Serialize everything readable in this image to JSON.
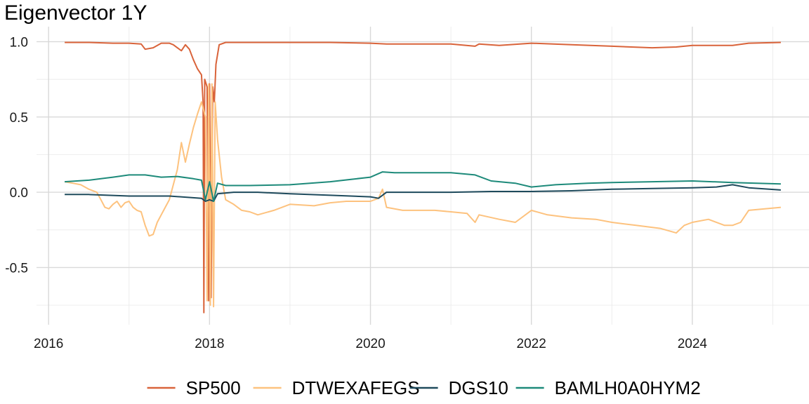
{
  "chart_data": {
    "type": "line",
    "title": "Eigenvector 1Y",
    "xlabel": "",
    "ylabel": "",
    "xlim": [
      2015.85,
      2025.45
    ],
    "ylim": [
      -0.88,
      1.1
    ],
    "x_ticks": [
      2016,
      2018,
      2020,
      2022,
      2024
    ],
    "x_tick_labels": [
      "2016",
      "2018",
      "2020",
      "2022",
      "2024"
    ],
    "y_ticks": [
      -0.5,
      0.0,
      0.5,
      1.0
    ],
    "y_tick_labels": [
      "-0.5",
      "0.0",
      "0.5",
      "1.0"
    ],
    "grid": true,
    "legend_position": "bottom",
    "series": [
      {
        "name": "SP500",
        "color": "#d9633a",
        "points": [
          [
            2016.2,
            0.995
          ],
          [
            2016.5,
            0.995
          ],
          [
            2016.8,
            0.99
          ],
          [
            2017.0,
            0.99
          ],
          [
            2017.15,
            0.985
          ],
          [
            2017.2,
            0.95
          ],
          [
            2017.3,
            0.96
          ],
          [
            2017.4,
            0.99
          ],
          [
            2017.5,
            0.99
          ],
          [
            2017.55,
            0.98
          ],
          [
            2017.6,
            0.96
          ],
          [
            2017.65,
            0.94
          ],
          [
            2017.7,
            0.98
          ],
          [
            2017.75,
            0.95
          ],
          [
            2017.8,
            0.88
          ],
          [
            2017.85,
            0.82
          ],
          [
            2017.9,
            0.78
          ],
          [
            2017.92,
            0.6
          ],
          [
            2017.93,
            -0.8
          ],
          [
            2017.94,
            0.75
          ],
          [
            2017.97,
            0.7
          ],
          [
            2017.99,
            -0.72
          ],
          [
            2018.0,
            0.72
          ],
          [
            2018.02,
            -0.7
          ],
          [
            2018.04,
            0.7
          ],
          [
            2018.06,
            0.6
          ],
          [
            2018.08,
            0.85
          ],
          [
            2018.12,
            0.98
          ],
          [
            2018.2,
            0.995
          ],
          [
            2018.5,
            0.995
          ],
          [
            2019.0,
            0.995
          ],
          [
            2019.5,
            0.995
          ],
          [
            2020.0,
            0.99
          ],
          [
            2020.2,
            0.985
          ],
          [
            2020.5,
            0.985
          ],
          [
            2021.0,
            0.985
          ],
          [
            2021.3,
            0.97
          ],
          [
            2021.35,
            0.985
          ],
          [
            2021.6,
            0.975
          ],
          [
            2022.0,
            0.99
          ],
          [
            2022.5,
            0.98
          ],
          [
            2023.0,
            0.97
          ],
          [
            2023.5,
            0.96
          ],
          [
            2023.8,
            0.965
          ],
          [
            2024.0,
            0.975
          ],
          [
            2024.5,
            0.975
          ],
          [
            2024.7,
            0.99
          ],
          [
            2025.1,
            0.995
          ]
        ]
      },
      {
        "name": "DTWEXAFEGS",
        "color": "#fdc27e",
        "points": [
          [
            2016.2,
            0.07
          ],
          [
            2016.3,
            0.06
          ],
          [
            2016.4,
            0.05
          ],
          [
            2016.5,
            0.02
          ],
          [
            2016.6,
            0.0
          ],
          [
            2016.65,
            -0.05
          ],
          [
            2016.7,
            -0.1
          ],
          [
            2016.75,
            -0.11
          ],
          [
            2016.8,
            -0.08
          ],
          [
            2016.85,
            -0.06
          ],
          [
            2016.9,
            -0.1
          ],
          [
            2016.95,
            -0.07
          ],
          [
            2017.0,
            -0.06
          ],
          [
            2017.05,
            -0.1
          ],
          [
            2017.1,
            -0.12
          ],
          [
            2017.15,
            -0.13
          ],
          [
            2017.2,
            -0.22
          ],
          [
            2017.25,
            -0.29
          ],
          [
            2017.3,
            -0.28
          ],
          [
            2017.35,
            -0.2
          ],
          [
            2017.4,
            -0.15
          ],
          [
            2017.45,
            -0.1
          ],
          [
            2017.5,
            -0.05
          ],
          [
            2017.55,
            0.05
          ],
          [
            2017.6,
            0.15
          ],
          [
            2017.65,
            0.33
          ],
          [
            2017.7,
            0.2
          ],
          [
            2017.75,
            0.32
          ],
          [
            2017.8,
            0.43
          ],
          [
            2017.85,
            0.52
          ],
          [
            2017.9,
            0.6
          ],
          [
            2017.95,
            0.5
          ],
          [
            2017.97,
            -0.72
          ],
          [
            2017.99,
            0.72
          ],
          [
            2018.01,
            -0.75
          ],
          [
            2018.03,
            0.72
          ],
          [
            2018.05,
            -0.76
          ],
          [
            2018.07,
            0.6
          ],
          [
            2018.1,
            0.35
          ],
          [
            2018.15,
            0.1
          ],
          [
            2018.2,
            -0.05
          ],
          [
            2018.3,
            -0.08
          ],
          [
            2018.4,
            -0.12
          ],
          [
            2018.5,
            -0.13
          ],
          [
            2018.6,
            -0.15
          ],
          [
            2018.8,
            -0.12
          ],
          [
            2019.0,
            -0.08
          ],
          [
            2019.3,
            -0.09
          ],
          [
            2019.5,
            -0.07
          ],
          [
            2019.7,
            -0.06
          ],
          [
            2020.0,
            -0.06
          ],
          [
            2020.1,
            -0.04
          ],
          [
            2020.15,
            0.02
          ],
          [
            2020.2,
            -0.1
          ],
          [
            2020.4,
            -0.12
          ],
          [
            2020.6,
            -0.12
          ],
          [
            2020.8,
            -0.12
          ],
          [
            2021.0,
            -0.13
          ],
          [
            2021.2,
            -0.14
          ],
          [
            2021.3,
            -0.2
          ],
          [
            2021.35,
            -0.15
          ],
          [
            2021.6,
            -0.18
          ],
          [
            2021.8,
            -0.2
          ],
          [
            2022.0,
            -0.12
          ],
          [
            2022.2,
            -0.15
          ],
          [
            2022.5,
            -0.17
          ],
          [
            2022.8,
            -0.18
          ],
          [
            2023.0,
            -0.2
          ],
          [
            2023.3,
            -0.22
          ],
          [
            2023.6,
            -0.24
          ],
          [
            2023.8,
            -0.27
          ],
          [
            2023.9,
            -0.22
          ],
          [
            2024.0,
            -0.2
          ],
          [
            2024.2,
            -0.18
          ],
          [
            2024.4,
            -0.22
          ],
          [
            2024.5,
            -0.22
          ],
          [
            2024.6,
            -0.2
          ],
          [
            2024.7,
            -0.12
          ],
          [
            2024.9,
            -0.11
          ],
          [
            2025.1,
            -0.1
          ]
        ]
      },
      {
        "name": "DGS10",
        "color": "#1e4a5c",
        "points": [
          [
            2016.2,
            -0.015
          ],
          [
            2016.5,
            -0.015
          ],
          [
            2017.0,
            -0.025
          ],
          [
            2017.5,
            -0.025
          ],
          [
            2017.9,
            -0.04
          ],
          [
            2017.95,
            -0.06
          ],
          [
            2018.0,
            -0.05
          ],
          [
            2018.05,
            -0.06
          ],
          [
            2018.1,
            -0.01
          ],
          [
            2018.3,
            0.0
          ],
          [
            2018.6,
            0.0
          ],
          [
            2019.0,
            -0.01
          ],
          [
            2019.5,
            -0.02
          ],
          [
            2020.0,
            -0.03
          ],
          [
            2020.1,
            -0.04
          ],
          [
            2020.2,
            0.0
          ],
          [
            2020.5,
            0.0
          ],
          [
            2021.0,
            0.0
          ],
          [
            2021.5,
            0.005
          ],
          [
            2022.0,
            0.005
          ],
          [
            2022.5,
            0.01
          ],
          [
            2023.0,
            0.02
          ],
          [
            2023.5,
            0.025
          ],
          [
            2024.0,
            0.03
          ],
          [
            2024.3,
            0.035
          ],
          [
            2024.5,
            0.05
          ],
          [
            2024.7,
            0.03
          ],
          [
            2025.1,
            0.015
          ]
        ]
      },
      {
        "name": "BAMLH0A0HYM2",
        "color": "#1d8a7a",
        "points": [
          [
            2016.2,
            0.07
          ],
          [
            2016.5,
            0.08
          ],
          [
            2016.8,
            0.1
          ],
          [
            2017.0,
            0.115
          ],
          [
            2017.2,
            0.115
          ],
          [
            2017.4,
            0.1
          ],
          [
            2017.6,
            0.105
          ],
          [
            2017.8,
            0.09
          ],
          [
            2017.9,
            0.08
          ],
          [
            2017.95,
            -0.05
          ],
          [
            2018.0,
            0.07
          ],
          [
            2018.05,
            -0.06
          ],
          [
            2018.1,
            0.06
          ],
          [
            2018.2,
            0.045
          ],
          [
            2018.5,
            0.045
          ],
          [
            2019.0,
            0.05
          ],
          [
            2019.5,
            0.07
          ],
          [
            2020.0,
            0.1
          ],
          [
            2020.15,
            0.135
          ],
          [
            2020.3,
            0.13
          ],
          [
            2020.6,
            0.13
          ],
          [
            2021.0,
            0.13
          ],
          [
            2021.3,
            0.115
          ],
          [
            2021.5,
            0.075
          ],
          [
            2021.8,
            0.06
          ],
          [
            2022.0,
            0.035
          ],
          [
            2022.3,
            0.05
          ],
          [
            2022.7,
            0.06
          ],
          [
            2023.0,
            0.065
          ],
          [
            2023.5,
            0.07
          ],
          [
            2024.0,
            0.075
          ],
          [
            2024.5,
            0.065
          ],
          [
            2025.1,
            0.055
          ]
        ]
      }
    ]
  }
}
